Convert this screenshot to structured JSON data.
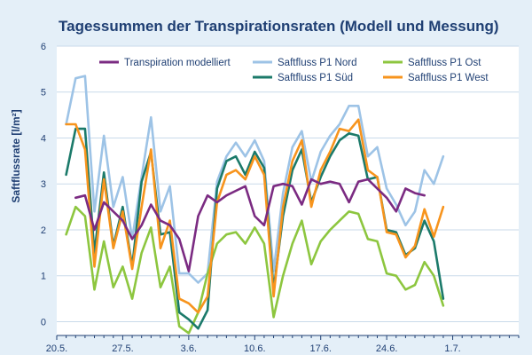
{
  "chart_data": {
    "type": "line",
    "title": "Tagessummen der Transpirationsraten (Modell und Messung)",
    "xlabel": "",
    "ylabel": "Saftflussrate [l/m²]",
    "ylim": [
      -0.3,
      6
    ],
    "yticks": [
      0,
      1,
      2,
      3,
      4,
      5,
      6
    ],
    "xrange": [
      0,
      49
    ],
    "xticks": [
      {
        "label": "20.5.",
        "x": 0
      },
      {
        "label": "27.5.",
        "x": 7
      },
      {
        "label": "3.6.",
        "x": 14
      },
      {
        "label": "10.6.",
        "x": 21
      },
      {
        "label": "17.6.",
        "x": 28
      },
      {
        "label": "24.6.",
        "x": 35
      },
      {
        "label": "1.7.",
        "x": 42
      }
    ],
    "grid": true,
    "legend_position": "top",
    "series": [
      {
        "name": "Transpiration modelliert",
        "color": "#7b2b82",
        "x": [
          2,
          3,
          4,
          5,
          6,
          7,
          8,
          9,
          10,
          11,
          12,
          13,
          14,
          15,
          16,
          17,
          18,
          19,
          20,
          21,
          22,
          23,
          24,
          25,
          26,
          27,
          28,
          29,
          30,
          31,
          32,
          33,
          34,
          35,
          36,
          37,
          38,
          39,
          40,
          41
        ],
        "y": [
          2.7,
          2.75,
          2.0,
          2.6,
          2.4,
          2.2,
          1.8,
          2.1,
          2.55,
          2.2,
          2.1,
          1.8,
          1.1,
          2.3,
          2.75,
          2.6,
          2.75,
          2.85,
          2.95,
          2.3,
          2.1,
          2.95,
          3.0,
          2.95,
          2.55,
          3.1,
          3.0,
          3.05,
          3.0,
          2.6,
          3.05,
          3.1,
          2.9,
          2.7,
          2.4,
          2.9,
          2.8,
          2.75,
          null,
          null
        ]
      },
      {
        "name": "Saftfluss P1 Nord",
        "color": "#9dc3e6",
        "x": [
          1,
          2,
          3,
          4,
          5,
          6,
          7,
          8,
          9,
          10,
          11,
          12,
          13,
          14,
          15,
          16,
          17,
          18,
          19,
          20,
          21,
          22,
          23,
          24,
          25,
          26,
          27,
          28,
          29,
          30,
          31,
          32,
          33,
          34,
          35,
          36,
          37,
          38,
          39,
          40,
          41,
          42
        ],
        "y": [
          4.3,
          5.3,
          5.35,
          2.4,
          4.05,
          2.5,
          3.15,
          1.8,
          3.15,
          4.45,
          2.4,
          2.95,
          1.05,
          1.05,
          0.85,
          1.05,
          3.05,
          3.6,
          3.9,
          3.6,
          3.95,
          3.5,
          1.1,
          2.8,
          3.8,
          4.15,
          3.05,
          3.7,
          4.05,
          4.3,
          4.7,
          4.7,
          3.6,
          3.8,
          2.9,
          2.55,
          2.1,
          2.4,
          3.3,
          3.0,
          3.6,
          null
        ]
      },
      {
        "name": "Saftfluss P1 Ost",
        "color": "#8dc63f",
        "x": [
          1,
          2,
          3,
          4,
          5,
          6,
          7,
          8,
          9,
          10,
          11,
          12,
          13,
          14,
          15,
          16,
          17,
          18,
          19,
          20,
          21,
          22,
          23,
          24,
          25,
          26,
          27,
          28,
          29,
          30,
          31,
          32,
          33,
          34,
          35,
          36,
          37,
          38,
          39,
          40,
          41,
          42
        ],
        "y": [
          1.9,
          2.5,
          2.3,
          0.7,
          1.75,
          0.75,
          1.2,
          0.5,
          1.5,
          2.05,
          0.75,
          1.2,
          -0.1,
          -0.25,
          0.2,
          1.05,
          1.7,
          1.9,
          1.95,
          1.7,
          2.05,
          1.7,
          0.1,
          1.0,
          1.7,
          2.2,
          1.25,
          1.75,
          2.0,
          2.2,
          2.4,
          2.35,
          1.8,
          1.75,
          1.05,
          1.0,
          0.7,
          0.8,
          1.3,
          1.0,
          0.35,
          null
        ]
      },
      {
        "name": "Saftfluss P1 Süd",
        "color": "#1b7a6a",
        "x": [
          1,
          2,
          3,
          4,
          5,
          6,
          7,
          8,
          9,
          10,
          11,
          12,
          13,
          14,
          15,
          16,
          17,
          18,
          19,
          20,
          21,
          22,
          23,
          24,
          25,
          26,
          27,
          28,
          29,
          30,
          31,
          32,
          33,
          34,
          35,
          36,
          37,
          38,
          39,
          40,
          41,
          42
        ],
        "y": [
          3.2,
          4.2,
          4.2,
          1.5,
          3.25,
          1.65,
          2.5,
          1.2,
          3.05,
          3.7,
          1.9,
          1.95,
          0.2,
          0.05,
          -0.15,
          0.25,
          2.9,
          3.5,
          3.6,
          3.2,
          3.7,
          3.35,
          0.7,
          2.3,
          3.3,
          3.75,
          2.6,
          3.15,
          3.6,
          3.95,
          4.1,
          4.05,
          3.1,
          3.15,
          2.0,
          1.95,
          1.45,
          1.6,
          2.2,
          1.75,
          0.5,
          null
        ]
      },
      {
        "name": "Saftfluss P1 West",
        "color": "#f7941d",
        "x": [
          1,
          2,
          3,
          4,
          5,
          6,
          7,
          8,
          9,
          10,
          11,
          12,
          13,
          14,
          15,
          16,
          17,
          18,
          19,
          20,
          21,
          22,
          23,
          24,
          25,
          26,
          27,
          28,
          29,
          30,
          31,
          32,
          33,
          34,
          35,
          36,
          37,
          38,
          39,
          40,
          41,
          42
        ],
        "y": [
          4.3,
          4.3,
          3.75,
          1.2,
          3.1,
          1.6,
          2.4,
          1.15,
          2.5,
          3.75,
          1.6,
          2.2,
          0.5,
          0.4,
          0.2,
          0.55,
          2.6,
          3.2,
          3.3,
          3.1,
          3.6,
          3.2,
          0.55,
          2.5,
          3.5,
          3.95,
          2.5,
          3.3,
          3.7,
          4.2,
          4.15,
          4.4,
          3.3,
          3.15,
          1.95,
          1.9,
          1.4,
          1.65,
          2.45,
          1.85,
          2.5,
          null
        ]
      }
    ]
  }
}
